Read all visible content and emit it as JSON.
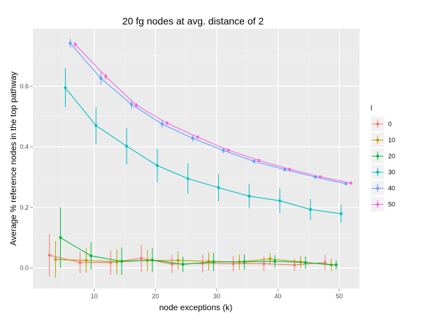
{
  "chart_data": {
    "type": "line",
    "title": "20 fg nodes at avg. distance of 2",
    "xlabel": "node exceptions (k)",
    "ylabel": "Average % reference nodes in the top pathway",
    "xlim": [
      0,
      53.3
    ],
    "ylim": [
      -0.068,
      0.79
    ],
    "xticks": [
      10,
      20,
      30,
      40,
      50
    ],
    "xtick_labels": [
      "10",
      "20",
      "30",
      "40",
      "50"
    ],
    "yticks": [
      0.0,
      0.2,
      0.4,
      0.6
    ],
    "ytick_labels": [
      "0.0",
      "0.2",
      "0.4",
      "0.6"
    ],
    "grid": true,
    "legend": {
      "title": "l",
      "position": "right"
    },
    "series": [
      {
        "name": "0",
        "color": "#F8766D",
        "x": [
          2.7,
          7.7,
          12.7,
          17.7,
          22.7,
          27.7,
          32.7,
          37.7,
          42.7,
          47.7
        ],
        "y": [
          0.042,
          0.018,
          0.018,
          0.032,
          0.013,
          0.015,
          0.014,
          0.014,
          0.01,
          0.018
        ],
        "err": [
          0.07,
          0.035,
          0.04,
          0.045,
          0.03,
          0.03,
          0.025,
          0.025,
          0.02,
          0.025
        ]
      },
      {
        "name": "10",
        "color": "#B79F00",
        "x": [
          3.7,
          8.7,
          13.7,
          18.7,
          23.7,
          28.7,
          33.7,
          38.7,
          43.7,
          48.7
        ],
        "y": [
          0.028,
          0.025,
          0.02,
          0.025,
          0.025,
          0.022,
          0.02,
          0.03,
          0.02,
          0.01
        ],
        "err": [
          0.06,
          0.04,
          0.04,
          0.035,
          0.03,
          0.03,
          0.025,
          0.02,
          0.02,
          0.02
        ]
      },
      {
        "name": "20",
        "color": "#00BA38",
        "x": [
          4.5,
          9.5,
          14.5,
          19.5,
          24.5,
          29.5,
          34.5,
          39.5,
          44.5,
          49.5
        ],
        "y": [
          0.1,
          0.04,
          0.022,
          0.026,
          0.012,
          0.02,
          0.02,
          0.022,
          0.018,
          0.01
        ],
        "err": [
          0.1,
          0.045,
          0.045,
          0.04,
          0.025,
          0.03,
          0.025,
          0.02,
          0.02,
          0.015
        ]
      },
      {
        "name": "30",
        "color": "#00BFC4",
        "x": [
          5.3,
          10.3,
          15.3,
          20.3,
          25.3,
          30.3,
          35.3,
          40.3,
          45.3,
          50.3
        ],
        "y": [
          0.595,
          0.47,
          0.402,
          0.338,
          0.295,
          0.265,
          0.237,
          0.222,
          0.193,
          0.179
        ],
        "err": [
          0.065,
          0.06,
          0.06,
          0.055,
          0.05,
          0.045,
          0.04,
          0.04,
          0.035,
          0.03
        ]
      },
      {
        "name": "40",
        "color": "#619CFF",
        "x": [
          6.1,
          11.1,
          16.1,
          21.1,
          26.1,
          31.1,
          36.1,
          41.1,
          46.1,
          51.1
        ],
        "y": [
          0.742,
          0.626,
          0.54,
          0.475,
          0.428,
          0.388,
          0.352,
          0.325,
          0.3,
          0.278
        ],
        "err": [
          0.015,
          0.02,
          0.015,
          0.012,
          0.01,
          0.01,
          0.008,
          0.007,
          0.006,
          0.005
        ]
      },
      {
        "name": "50",
        "color": "#F564E3",
        "x": [
          6.9,
          11.9,
          16.9,
          21.9,
          26.9,
          31.9,
          36.9,
          41.9,
          46.9,
          51.9
        ],
        "y": [
          0.738,
          0.632,
          0.537,
          0.478,
          0.432,
          0.389,
          0.355,
          0.326,
          0.301,
          0.28
        ],
        "err": [
          0.008,
          0.01,
          0.008,
          0.007,
          0.006,
          0.005,
          0.005,
          0.004,
          0.004,
          0.003
        ]
      }
    ]
  }
}
